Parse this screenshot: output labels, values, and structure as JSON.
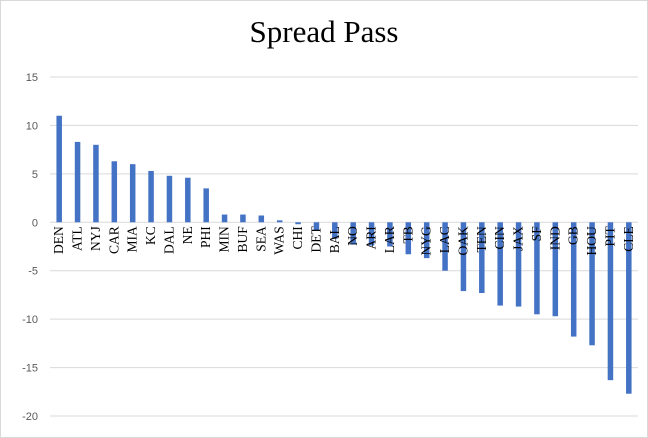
{
  "chart_data": {
    "type": "bar",
    "title": "Spread Pass",
    "xlabel": "",
    "ylabel": "",
    "ylim": [
      -20,
      15
    ],
    "y_ticks": [
      15,
      10,
      5,
      0,
      -5,
      -10,
      -15,
      -20
    ],
    "grid": true,
    "legend": "none",
    "bar_color": "#4472c4",
    "categories": [
      "DEN",
      "ATL",
      "NYJ",
      "CAR",
      "MIA",
      "KC",
      "DAL",
      "NE",
      "PHI",
      "MIN",
      "BUF",
      "SEA",
      "WAS",
      "CHI",
      "DET",
      "BAL",
      "NO",
      "ARI",
      "LAR",
      "TB",
      "NYG",
      "LAC",
      "OAK",
      "TEN",
      "CIN",
      "JAX",
      "SF",
      "IND",
      "GB",
      "HOU",
      "PIT",
      "CLE"
    ],
    "values": [
      11.0,
      8.3,
      8.0,
      6.3,
      6.0,
      5.3,
      4.8,
      4.6,
      3.5,
      0.8,
      0.8,
      0.7,
      0.2,
      -0.2,
      -0.8,
      -1.7,
      -2.3,
      -2.4,
      -2.5,
      -3.3,
      -3.7,
      -5.0,
      -7.1,
      -7.3,
      -8.6,
      -8.7,
      -9.5,
      -9.7,
      -11.8,
      -12.7,
      -16.3,
      -17.7
    ]
  }
}
